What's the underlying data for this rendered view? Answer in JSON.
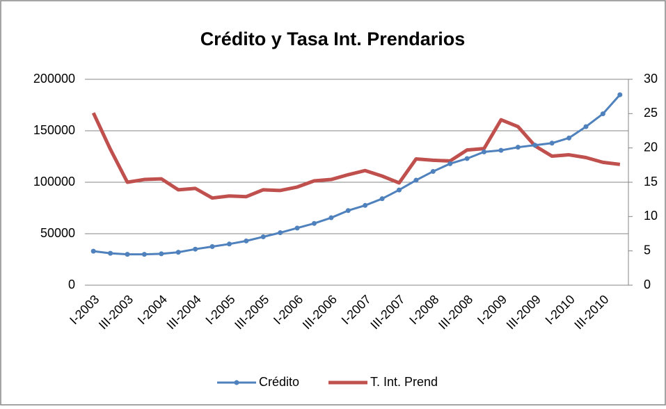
{
  "chart_data": {
    "type": "line",
    "title": "Crédito y Tasa Int. Prendarios",
    "categories": [
      "I-2003",
      null,
      "III-2003",
      null,
      "I-2004",
      null,
      "III-2004",
      null,
      "I-2005",
      null,
      "III-2005",
      null,
      "I-2006",
      null,
      "III-2006",
      null,
      "I-2007",
      null,
      "III-2007",
      null,
      "I-2008",
      null,
      "III-2008",
      null,
      "I-2009",
      null,
      "III-2009",
      null,
      "I-2010",
      null,
      "III-2010",
      null
    ],
    "series": [
      {
        "name": "Crédito",
        "color": "#4f81bd",
        "markers": true,
        "values": [
          33000,
          31000,
          30000,
          30000,
          30500,
          32000,
          35000,
          37500,
          40000,
          43000,
          47000,
          51000,
          55500,
          60000,
          65500,
          72500,
          77500,
          84000,
          92500,
          102000,
          110500,
          118000,
          123000,
          129500,
          131000,
          134000,
          136000,
          138000,
          143000,
          154000,
          166500,
          185000
        ]
      },
      {
        "name": "T. Int. Prend",
        "color": "#c0504d",
        "axis": "y2",
        "markers": false,
        "values": [
          25.1,
          19.8,
          15.0,
          15.4,
          15.5,
          13.9,
          14.1,
          12.7,
          13.0,
          12.9,
          13.9,
          13.8,
          14.3,
          15.2,
          15.4,
          16.1,
          16.7,
          15.9,
          14.9,
          18.4,
          18.2,
          18.1,
          19.7,
          19.9,
          24.1,
          23.1,
          20.3,
          18.8,
          19.0,
          18.6,
          17.9,
          17.6
        ]
      }
    ],
    "ylim": [
      0,
      200000
    ],
    "yticks": [
      0,
      50000,
      100000,
      150000,
      200000
    ],
    "y2lim": [
      0,
      30
    ],
    "y2ticks": [
      0,
      5,
      10,
      15,
      20,
      25,
      30
    ],
    "grid": true,
    "legend": "bottom"
  }
}
